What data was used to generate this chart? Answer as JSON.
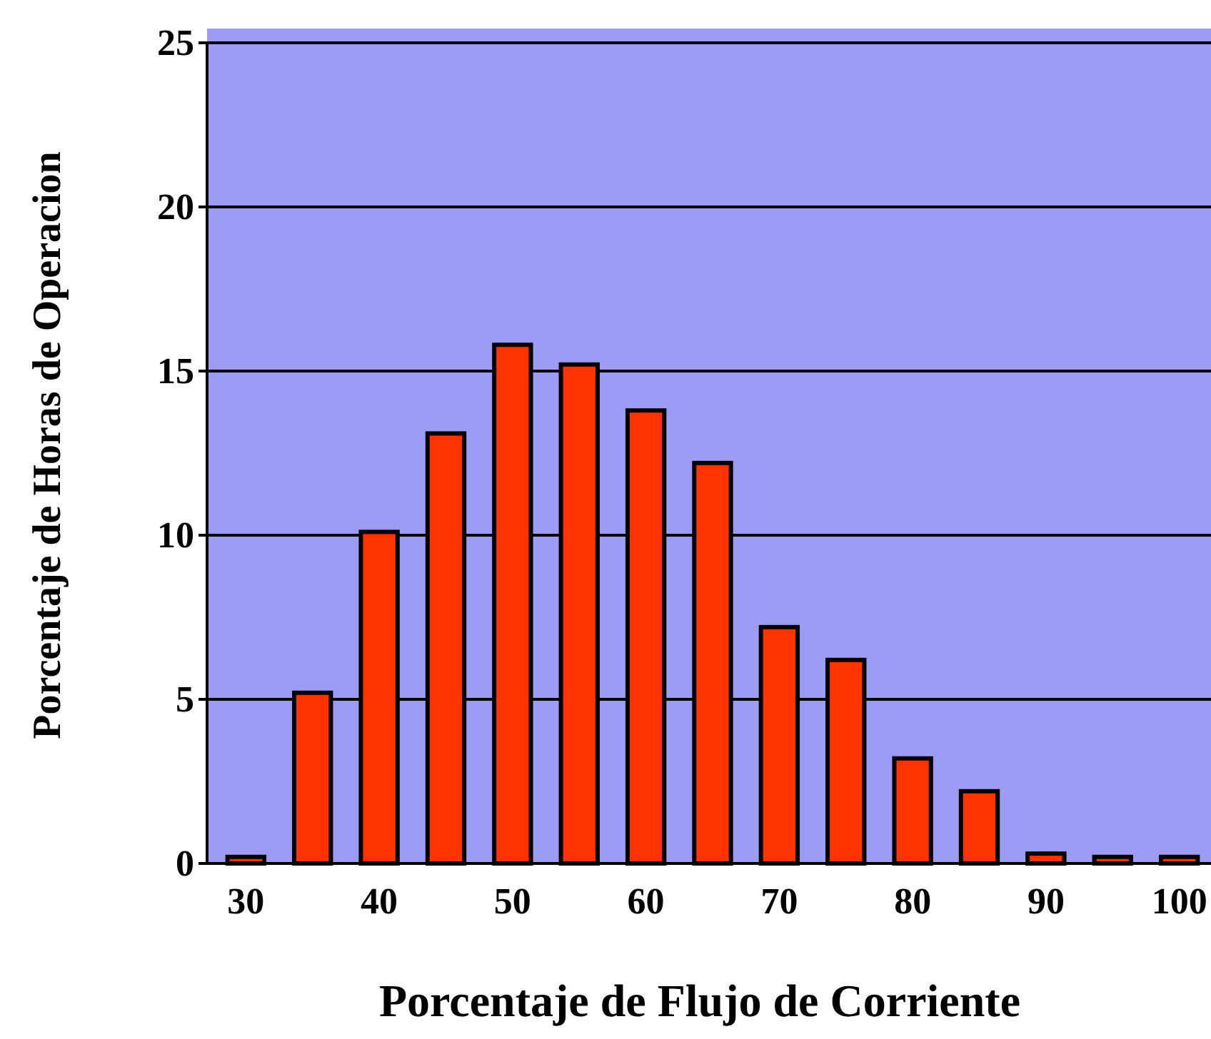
{
  "chart_data": {
    "type": "bar",
    "xlabel": "Porcentaje de Flujo de Corriente",
    "ylabel": "Porcentaje de Horas de Operacion",
    "categories": [
      "30",
      null,
      "40",
      null,
      "50",
      null,
      "60",
      null,
      "70",
      null,
      "80",
      null,
      "90",
      null,
      "100"
    ],
    "values": [
      0.2,
      5.2,
      10.1,
      13.1,
      15.8,
      15.2,
      13.8,
      12.2,
      7.2,
      6.2,
      3.2,
      2.2,
      0.3,
      0.2,
      0.2
    ],
    "color": "#ff3300",
    "ylim": [
      0,
      25
    ],
    "yticks": [
      0,
      5,
      10,
      15,
      20,
      25
    ],
    "grid": "y"
  }
}
